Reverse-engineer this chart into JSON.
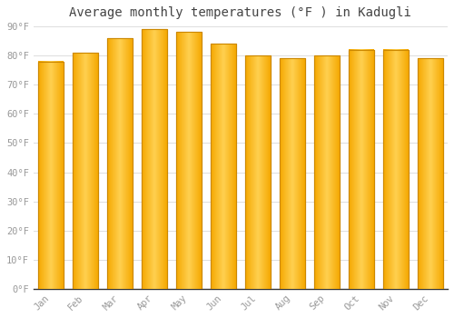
{
  "months": [
    "Jan",
    "Feb",
    "Mar",
    "Apr",
    "May",
    "Jun",
    "Jul",
    "Aug",
    "Sep",
    "Oct",
    "Nov",
    "Dec"
  ],
  "values": [
    78,
    81,
    86,
    89,
    88,
    84,
    80,
    79,
    80,
    82,
    82,
    79
  ],
  "bar_color_center": "#FFD050",
  "bar_color_edge": "#F5A800",
  "bar_border_color": "#CC8800",
  "background_color": "#FFFFFF",
  "plot_bg_color": "#FFFFFF",
  "grid_color": "#DDDDDD",
  "title": "Average monthly temperatures (°F ) in Kadugli",
  "title_fontsize": 10,
  "ylim": [
    0,
    90
  ],
  "yticks": [
    0,
    10,
    20,
    30,
    40,
    50,
    60,
    70,
    80,
    90
  ],
  "ytick_labels": [
    "0°F",
    "10°F",
    "20°F",
    "30°F",
    "40°F",
    "50°F",
    "60°F",
    "70°F",
    "80°F",
    "90°F"
  ],
  "tick_label_color": "#999999",
  "tick_fontsize": 7.5,
  "title_color": "#444444",
  "bar_width": 0.72
}
